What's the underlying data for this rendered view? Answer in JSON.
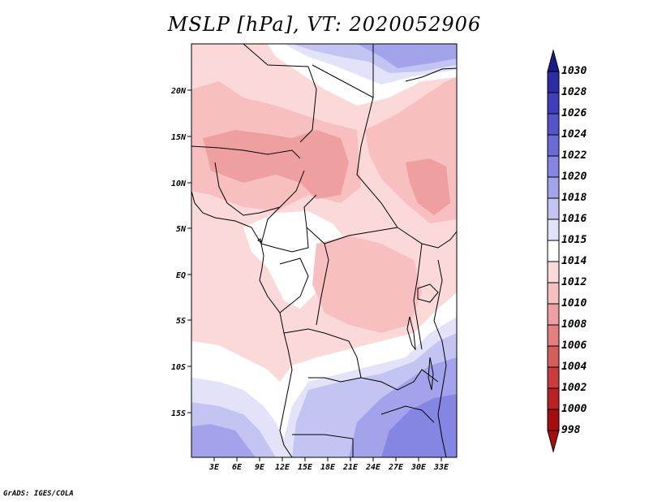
{
  "title": "MSLP [hPa], VT: 2020052906",
  "credit": "GrADS: IGES/COLA",
  "lat_labels": [
    "20N",
    "15N",
    "10N",
    "5N",
    "EQ",
    "5S",
    "10S",
    "15S"
  ],
  "lon_labels": [
    "3E",
    "6E",
    "9E",
    "12E",
    "15E",
    "18E",
    "21E",
    "24E",
    "27E",
    "30E",
    "33E"
  ],
  "colorbar": {
    "labels": [
      "1030",
      "1028",
      "1026",
      "1024",
      "1022",
      "1020",
      "1018",
      "1016",
      "1015",
      "1014",
      "1012",
      "1010",
      "1008",
      "1006",
      "1004",
      "1002",
      "1000",
      "998"
    ],
    "colors": [
      "#1a1a8c",
      "#2c2ca8",
      "#3e3ebf",
      "#5454cf",
      "#6a6ada",
      "#8585e3",
      "#a3a3ec",
      "#c4c4f3",
      "#e2e2f9",
      "#ffffff",
      "#fbd9d9",
      "#f7bfbf",
      "#eea0a0",
      "#e47f7f",
      "#d95c5c",
      "#cc3b3b",
      "#bd2020",
      "#a80d0d"
    ]
  },
  "legend_colors": {
    "1016": "#c4c4f3",
    "1015": "#e2e2f9",
    "1014": "#ffffff",
    "1012": "#fbd9d9",
    "1010": "#f7bfbf",
    "1008": "#eea0a0"
  }
}
